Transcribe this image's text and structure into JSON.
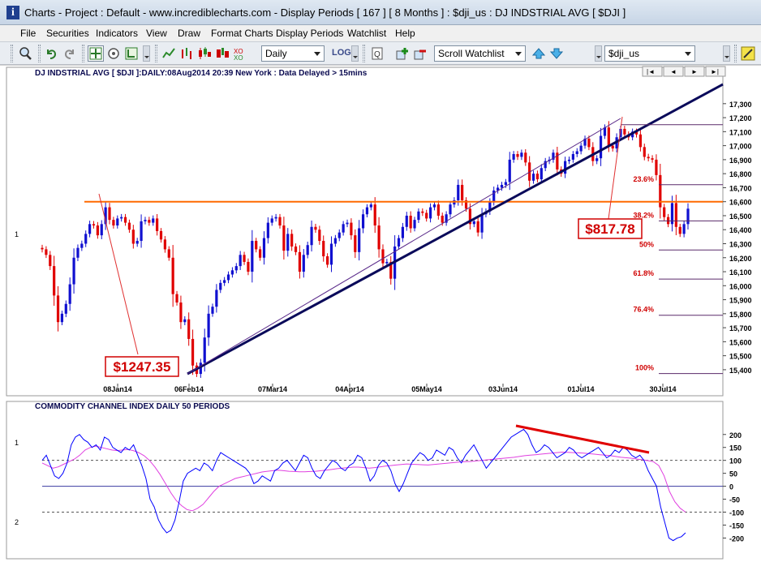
{
  "window": {
    "title": "Charts - Project : Default - www.incrediblecharts.com - Display Periods  [ 167 ]  [ 8 Months ] : $dji_us : DJ INDSTRIAL AVG  [ $DJI ]"
  },
  "menu": [
    "File",
    "Securities",
    "Indicators",
    "View",
    "Draw",
    "Format Charts",
    "Display Periods",
    "Watchlist",
    "Help"
  ],
  "toolbar": {
    "period": "Daily",
    "log_label": "LOG",
    "watchlist": "Scroll Watchlist",
    "security": "$dji_us"
  },
  "nav": [
    "|◄",
    "◄",
    "►",
    "►|"
  ],
  "price_chart": {
    "header": "DJ INDSTRIAL AVG [ $DJI ]:DAILY:08Aug2014 20:39 New York : Data Delayed > 15mins",
    "panel_label": "1",
    "y_ticks": [
      15400,
      15500,
      15600,
      15700,
      15800,
      15900,
      16000,
      16100,
      16200,
      16300,
      16400,
      16500,
      16600,
      16700,
      16800,
      16900,
      17000,
      17100,
      17200,
      17300
    ],
    "y_range": [
      15330,
      17380
    ],
    "x_labels": [
      "08Jan14",
      "06Feb14",
      "07Mar14",
      "04Apr14",
      "05May14",
      "03Jun14",
      "01Jul14",
      "30Jul14"
    ],
    "resistance_level": 16600,
    "fib_levels": [
      {
        "label": "23.6%",
        "value": 16721
      },
      {
        "label": "38.2%",
        "value": 16463
      },
      {
        "label": "50%",
        "value": 16255
      },
      {
        "label": "61.8%",
        "value": 16047
      },
      {
        "label": "76.4%",
        "value": 15789
      },
      {
        "label": "100%",
        "value": 15373
      },
      {
        "label": "",
        "value": 17150
      }
    ],
    "annotations": [
      {
        "text": "$1247.35"
      },
      {
        "text": "$817.78"
      }
    ]
  },
  "cci_chart": {
    "title": "COMMODITY CHANNEL INDEX DAILY 50 PERIODS",
    "panel_labels": [
      "1",
      "2"
    ],
    "y_ticks": [
      200,
      150,
      100,
      50,
      0,
      -50,
      -100,
      -150,
      -200
    ],
    "y_range": [
      -230,
      240
    ],
    "guide_levels": [
      100,
      0,
      -100
    ]
  },
  "colors": {
    "up": "#1010d0",
    "down": "#e00000",
    "resistance": "#ff6a00",
    "trend": "#0a0a5a",
    "cci": "#0000ff",
    "signal": "#e040e0"
  },
  "chart_data": [
    {
      "type": "candlestick",
      "title": "DJ INDSTRIAL AVG [ $DJI ]:DAILY:08Aug2014 20:39 New York : Data Delayed > 15mins",
      "closes": [
        16260,
        16220,
        16140,
        15930,
        15740,
        15800,
        15870,
        16010,
        16200,
        16270,
        16300,
        16370,
        16440,
        16430,
        16360,
        16440,
        16560,
        16470,
        16430,
        16480,
        16490,
        16450,
        16400,
        16300,
        16320,
        16460,
        16470,
        16450,
        16480,
        16390,
        16330,
        16260,
        16200,
        15940,
        15880,
        15740,
        15760,
        15620,
        15430,
        15370,
        15450,
        15630,
        15800,
        15850,
        15970,
        16020,
        16040,
        16080,
        16110,
        16140,
        16220,
        16170,
        16100,
        16320,
        16260,
        16200,
        16340,
        16450,
        16480,
        16490,
        16430,
        16250,
        16370,
        16280,
        16240,
        16100,
        16220,
        16290,
        16420,
        16400,
        16320,
        16210,
        16150,
        16300,
        16340,
        16380,
        16440,
        16450,
        16360,
        16240,
        16410,
        16510,
        16560,
        16580,
        16430,
        16260,
        16160,
        16170,
        16050,
        16280,
        16340,
        16420,
        16500,
        16410,
        16470,
        16530,
        16520,
        16480,
        16560,
        16580,
        16500,
        16450,
        16510,
        16580,
        16610,
        16720,
        16610,
        16550,
        16440,
        16460,
        16380,
        16510,
        16530,
        16600,
        16680,
        16700,
        16720,
        16740,
        16900,
        16940,
        16920,
        16950,
        16880,
        16750,
        16800,
        16760,
        16840,
        16890,
        16900,
        16950,
        16830,
        16800,
        16890,
        16900,
        16940,
        16960,
        17000,
        17050,
        16990,
        16890,
        16910,
        17070,
        17130,
        17000,
        16980,
        17060,
        17120,
        17080,
        17060,
        17100,
        17080,
        16990,
        16920,
        16910,
        16900,
        16790,
        16560,
        16490,
        16440,
        16590,
        16420,
        16370,
        16440,
        16550
      ],
      "x_labels": [
        "08Jan14",
        "06Feb14",
        "07Mar14",
        "04Apr14",
        "05May14",
        "03Jun14",
        "01Jul14",
        "30Jul14"
      ]
    },
    {
      "type": "line",
      "title": "COMMODITY CHANNEL INDEX DAILY 50 PERIODS",
      "ylim": [
        -230,
        240
      ],
      "cci": [
        100,
        120,
        80,
        40,
        30,
        50,
        90,
        160,
        190,
        200,
        180,
        170,
        150,
        160,
        140,
        190,
        180,
        150,
        140,
        130,
        150,
        140,
        160,
        120,
        80,
        30,
        -50,
        -80,
        -130,
        -160,
        -180,
        -170,
        -130,
        -60,
        20,
        50,
        60,
        70,
        60,
        90,
        80,
        60,
        100,
        130,
        120,
        110,
        100,
        90,
        80,
        70,
        50,
        10,
        20,
        40,
        30,
        20,
        60,
        70,
        90,
        100,
        80,
        60,
        90,
        120,
        110,
        70,
        40,
        30,
        60,
        80,
        100,
        90,
        70,
        60,
        80,
        90,
        120,
        110,
        70,
        20,
        40,
        80,
        100,
        90,
        60,
        10,
        -20,
        10,
        50,
        90,
        110,
        130,
        120,
        100,
        110,
        140,
        130,
        120,
        150,
        140,
        110,
        90,
        120,
        140,
        160,
        130,
        100,
        70,
        90,
        110,
        130,
        150,
        170,
        190,
        200,
        210,
        220,
        200,
        160,
        130,
        140,
        160,
        150,
        130,
        110,
        120,
        130,
        150,
        140,
        120,
        110,
        120,
        130,
        140,
        150,
        130,
        110,
        120,
        140,
        130,
        150,
        140,
        120,
        110,
        120,
        100,
        60,
        30,
        0,
        -80,
        -140,
        -200,
        -210,
        -200,
        -195,
        -180
      ],
      "signal": [
        90,
        80,
        70,
        75,
        85,
        95,
        105,
        120,
        140,
        150,
        155,
        150,
        145,
        140,
        138,
        140,
        142,
        138,
        130,
        118,
        100,
        75,
        45,
        10,
        -25,
        -55,
        -75,
        -90,
        -95,
        -85,
        -70,
        -45,
        -20,
        0,
        10,
        20,
        30,
        35,
        40,
        45,
        50,
        55,
        58,
        60,
        62,
        60,
        58,
        57,
        56,
        56,
        57,
        58,
        60,
        62,
        65,
        68,
        70,
        72,
        74,
        74,
        72,
        70,
        72,
        75,
        78,
        80,
        82,
        84,
        86,
        85,
        84,
        83,
        82,
        84,
        86,
        88,
        90,
        92,
        94,
        95,
        96,
        98,
        100,
        102,
        104,
        106,
        108,
        110,
        112,
        115,
        118,
        120,
        122,
        124,
        126,
        128,
        130,
        132,
        131,
        130,
        129,
        128,
        126,
        124,
        122,
        120,
        118,
        115,
        112,
        110,
        108,
        105,
        102,
        99,
        95,
        80,
        40,
        -20,
        -60,
        -85,
        -100
      ]
    }
  ]
}
